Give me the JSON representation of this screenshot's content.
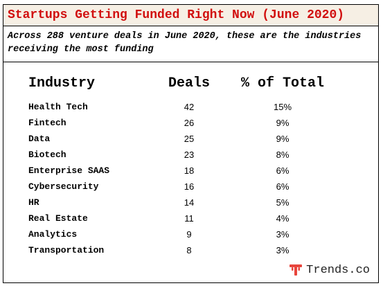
{
  "header": {
    "title": "Startups Getting Funded Right Now (June 2020)",
    "subtitle": "Across 288 venture deals in June 2020, these are the industries receiving the most funding"
  },
  "table": {
    "columns": [
      "Industry",
      "Deals",
      "% of Total"
    ],
    "rows": [
      {
        "industry": "Health Tech",
        "deals": "42",
        "pct": "15%"
      },
      {
        "industry": "Fintech",
        "deals": "26",
        "pct": "9%"
      },
      {
        "industry": "Data",
        "deals": "25",
        "pct": "9%"
      },
      {
        "industry": "Biotech",
        "deals": "23",
        "pct": "8%"
      },
      {
        "industry": "Enterprise SAAS",
        "deals": "18",
        "pct": "6%"
      },
      {
        "industry": "Cybersecurity",
        "deals": "16",
        "pct": "6%"
      },
      {
        "industry": "HR",
        "deals": "14",
        "pct": "5%"
      },
      {
        "industry": "Real Estate",
        "deals": "11",
        "pct": "4%"
      },
      {
        "industry": "Analytics",
        "deals": "9",
        "pct": "3%"
      },
      {
        "industry": "Transportation",
        "deals": "8",
        "pct": "3%"
      }
    ]
  },
  "brand": {
    "text": "Trends.co",
    "icon": "trends-logo-icon",
    "color": "#e8453c"
  },
  "colors": {
    "title_text": "#d10f0f",
    "title_background": "#f6efe4",
    "border": "#000000"
  }
}
